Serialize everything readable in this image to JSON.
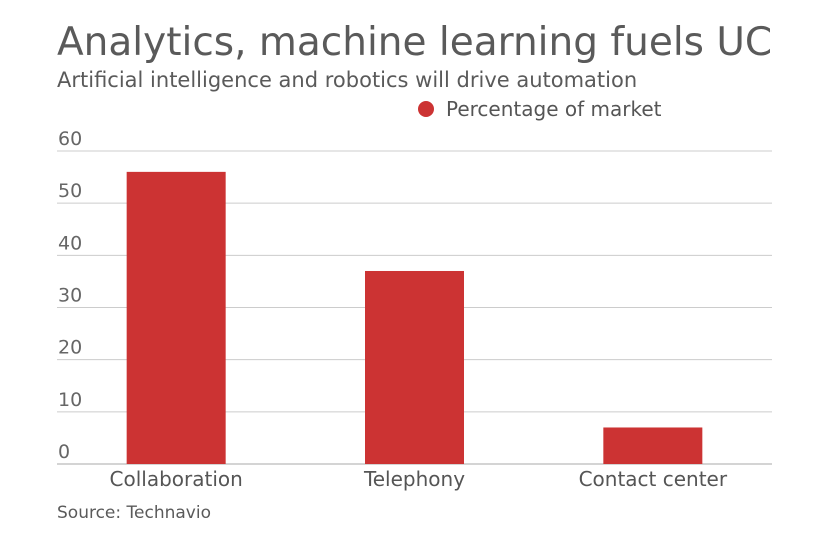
{
  "chart_data": {
    "type": "bar",
    "title": "Analytics, machine learning fuels UC",
    "subtitle": "Artificial intelligence and robotics will drive automation",
    "source": "Source: Technavio",
    "categories": [
      "Collaboration",
      "Telephony",
      "Contact center"
    ],
    "series": [
      {
        "name": "Percentage of market",
        "values": [
          56,
          37,
          7
        ]
      }
    ],
    "ylim": [
      0,
      60
    ],
    "yticks": [
      0,
      10,
      20,
      30,
      40,
      50,
      60
    ],
    "grid": true,
    "legend": "top-right",
    "colors": {
      "bar": "#cc3333",
      "grid": "#cccccc",
      "axis": "#aaaaaa"
    }
  }
}
